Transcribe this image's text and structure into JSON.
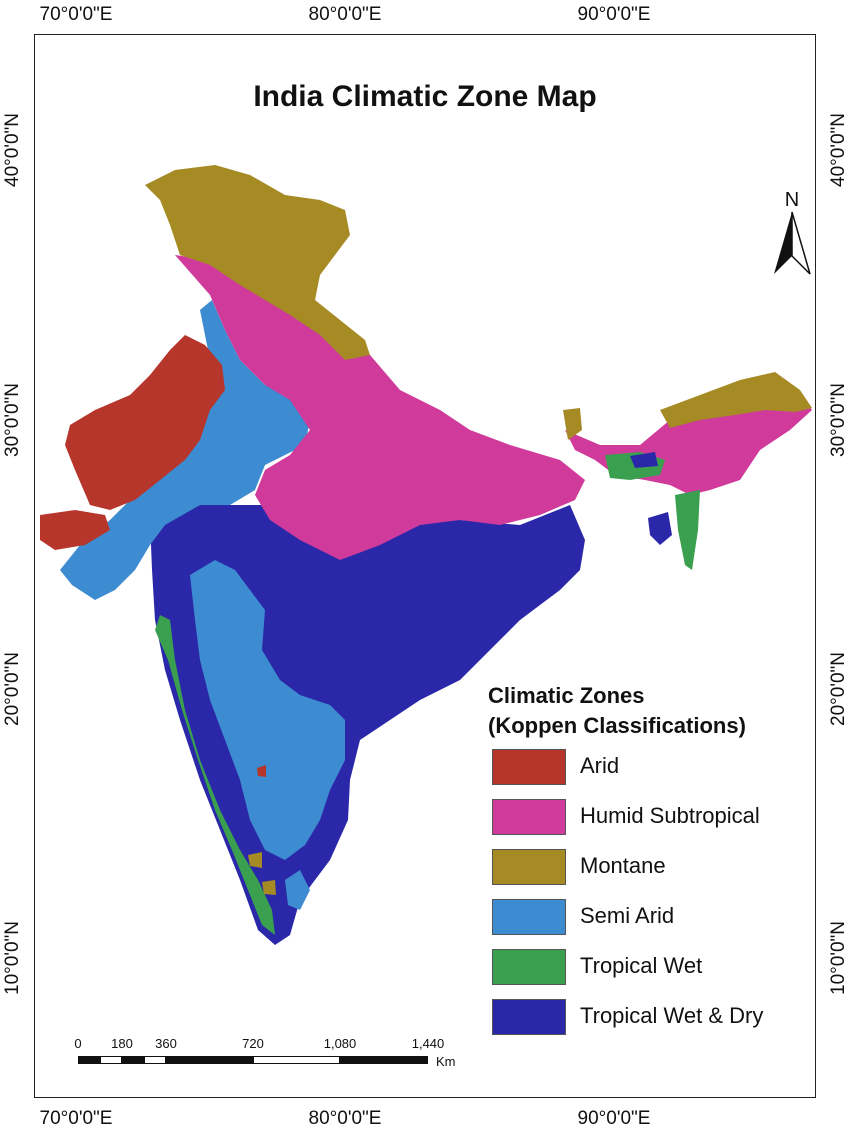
{
  "map": {
    "title": "India Climatic Zone Map",
    "longitude_labels": [
      "70°0'0\"E",
      "80°0'0\"E",
      "90°0'0\"E"
    ],
    "latitude_labels": [
      "40°0'0\"N",
      "30°0'0\"N",
      "20°0'0\"N",
      "10°0'0\"N"
    ],
    "north_label": "N",
    "legend": {
      "title_line1": "Climatic Zones",
      "title_line2": "(Koppen Classifications)",
      "items": [
        {
          "label": "Arid",
          "color": "#b7362c"
        },
        {
          "label": "Humid Subtropical",
          "color": "#cf3a9b"
        },
        {
          "label": "Montane",
          "color": "#a68a24"
        },
        {
          "label": "Semi Arid",
          "color": "#3d8bd0"
        },
        {
          "label": "Tropical Wet",
          "color": "#3aa04f"
        },
        {
          "label": "Tropical Wet & Dry",
          "color": "#2a28a8"
        }
      ]
    },
    "scale_bar": {
      "ticks": [
        "0",
        "180",
        "360",
        "720",
        "1,080",
        "1,440"
      ],
      "unit": "Km"
    }
  }
}
